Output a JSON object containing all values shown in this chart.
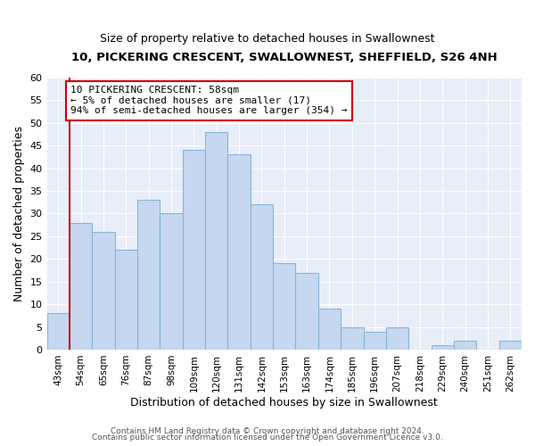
{
  "title": "10, PICKERING CRESCENT, SWALLOWNEST, SHEFFIELD, S26 4NH",
  "subtitle": "Size of property relative to detached houses in Swallownest",
  "xlabel": "Distribution of detached houses by size in Swallownest",
  "ylabel": "Number of detached properties",
  "bin_labels": [
    "43sqm",
    "54sqm",
    "65sqm",
    "76sqm",
    "87sqm",
    "98sqm",
    "109sqm",
    "120sqm",
    "131sqm",
    "142sqm",
    "153sqm",
    "163sqm",
    "174sqm",
    "185sqm",
    "196sqm",
    "207sqm",
    "218sqm",
    "229sqm",
    "240sqm",
    "251sqm",
    "262sqm"
  ],
  "bar_heights": [
    8,
    28,
    26,
    22,
    33,
    30,
    44,
    48,
    43,
    32,
    19,
    17,
    9,
    5,
    4,
    5,
    0,
    1,
    2,
    0,
    2
  ],
  "bar_color": "#c5d8f0",
  "bar_edge_color": "#8ab4d8",
  "vline_x_index": 1,
  "vline_color": "#cc0000",
  "ylim": [
    0,
    60
  ],
  "yticks": [
    0,
    5,
    10,
    15,
    20,
    25,
    30,
    35,
    40,
    45,
    50,
    55,
    60
  ],
  "annotation_title": "10 PICKERING CRESCENT: 58sqm",
  "annotation_line1": "← 5% of detached houses are smaller (17)",
  "annotation_line2": "94% of semi-detached houses are larger (354) →",
  "annotation_box_color": "#ffffff",
  "annotation_box_edge": "#cc0000",
  "footer_line1": "Contains HM Land Registry data © Crown copyright and database right 2024.",
  "footer_line2": "Contains public sector information licensed under the Open Government Licence v3.0.",
  "background_color": "#ffffff",
  "plot_bg_color": "#e8eef8",
  "grid_color": "#ffffff"
}
